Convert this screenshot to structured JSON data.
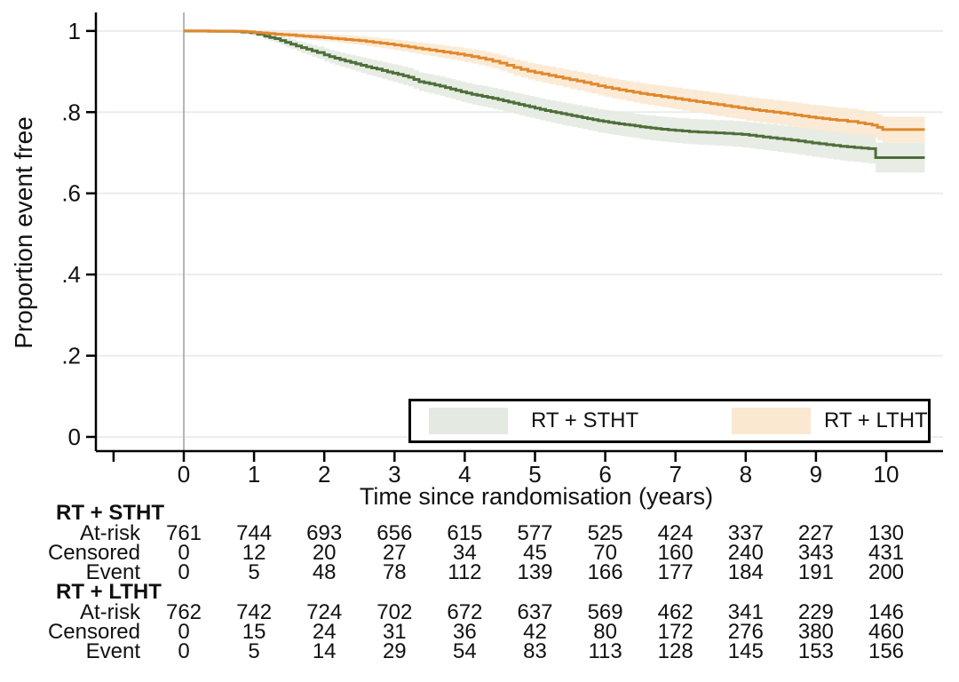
{
  "figure": {
    "background": "#ffffff",
    "grid_color": "#e9edeb",
    "axis_color": "#000000",
    "reference_line_color": "#a3a3a3",
    "text_color": "#111111"
  },
  "legend": {
    "items": [
      {
        "label": "RT + STHT",
        "swatch_color": "#e4e9e1"
      },
      {
        "label": "RT + LTHT",
        "swatch_color": "#fae8d0"
      }
    ]
  },
  "chart_data": {
    "type": "line",
    "subtype": "kaplan-meier-step-with-confidence-bands",
    "title": "",
    "xlabel": "Time since randomisation (years)",
    "ylabel": "Proportion event free",
    "xlim": [
      -1.25,
      10.8
    ],
    "ylim": [
      0,
      1
    ],
    "grid": "horizontal",
    "legend_position": "inside-bottom-right",
    "reference_line_x": 0,
    "x_ticks": [
      0,
      1,
      2,
      3,
      4,
      5,
      6,
      7,
      8,
      9,
      10
    ],
    "x_minor_ticks": [
      -1
    ],
    "y_ticks": [
      {
        "label": "1",
        "value": 1
      },
      {
        "label": ".8",
        "value": 0.8
      },
      {
        "label": ".6",
        "value": 0.6
      },
      {
        "label": ".4",
        "value": 0.4
      },
      {
        "label": ".2",
        "value": 0.2
      },
      {
        "label": "0",
        "value": 0
      }
    ],
    "series": [
      {
        "name": "RT + STHT",
        "line_color": "#4d6e38",
        "band_color": "#e4e9e1",
        "points": [
          [
            0,
            1
          ],
          [
            0.7,
            0.999
          ],
          [
            0.95,
            0.996
          ],
          [
            1.05,
            0.992
          ],
          [
            1.15,
            0.987
          ],
          [
            1.3,
            0.981
          ],
          [
            1.45,
            0.972
          ],
          [
            1.6,
            0.963
          ],
          [
            1.75,
            0.955
          ],
          [
            1.9,
            0.947
          ],
          [
            2.0,
            0.941
          ],
          [
            2.15,
            0.933
          ],
          [
            2.3,
            0.926
          ],
          [
            2.45,
            0.919
          ],
          [
            2.6,
            0.912
          ],
          [
            2.75,
            0.906
          ],
          [
            2.9,
            0.899
          ],
          [
            3.05,
            0.893
          ],
          [
            3.2,
            0.886
          ],
          [
            3.35,
            0.875
          ],
          [
            3.5,
            0.87
          ],
          [
            3.65,
            0.864
          ],
          [
            3.8,
            0.857
          ],
          [
            3.95,
            0.85
          ],
          [
            4.1,
            0.844
          ],
          [
            4.25,
            0.839
          ],
          [
            4.4,
            0.834
          ],
          [
            4.55,
            0.828
          ],
          [
            4.7,
            0.822
          ],
          [
            4.85,
            0.816
          ],
          [
            5.0,
            0.81
          ],
          [
            5.15,
            0.804
          ],
          [
            5.3,
            0.799
          ],
          [
            5.45,
            0.794
          ],
          [
            5.6,
            0.789
          ],
          [
            5.75,
            0.784
          ],
          [
            5.9,
            0.779
          ],
          [
            6.05,
            0.775
          ],
          [
            6.2,
            0.771
          ],
          [
            6.35,
            0.768
          ],
          [
            6.5,
            0.764
          ],
          [
            6.65,
            0.761
          ],
          [
            6.8,
            0.758
          ],
          [
            7.0,
            0.755
          ],
          [
            7.2,
            0.752
          ],
          [
            7.45,
            0.75
          ],
          [
            7.7,
            0.748
          ],
          [
            7.95,
            0.745
          ],
          [
            8.15,
            0.741
          ],
          [
            8.35,
            0.737
          ],
          [
            8.55,
            0.733
          ],
          [
            8.75,
            0.729
          ],
          [
            8.95,
            0.724
          ],
          [
            9.15,
            0.72
          ],
          [
            9.35,
            0.716
          ],
          [
            9.55,
            0.713
          ],
          [
            9.75,
            0.71
          ],
          [
            9.85,
            0.688
          ],
          [
            10.55,
            0.688
          ]
        ],
        "ci_halfwidth": [
          [
            0,
            0.002
          ],
          [
            1,
            0.007
          ],
          [
            2,
            0.016
          ],
          [
            3,
            0.022
          ],
          [
            4,
            0.025
          ],
          [
            5,
            0.027
          ],
          [
            6,
            0.029
          ],
          [
            7,
            0.031
          ],
          [
            8,
            0.032
          ],
          [
            9,
            0.034
          ],
          [
            9.9,
            0.037
          ],
          [
            10.55,
            0.037
          ]
        ]
      },
      {
        "name": "RT + LTHT",
        "line_color": "#e0882d",
        "band_color": "#fae8d0",
        "points": [
          [
            0,
            1
          ],
          [
            0.9,
            0.998
          ],
          [
            1.1,
            0.995
          ],
          [
            1.3,
            0.992
          ],
          [
            1.5,
            0.99
          ],
          [
            1.7,
            0.987
          ],
          [
            1.9,
            0.985
          ],
          [
            2.1,
            0.982
          ],
          [
            2.3,
            0.979
          ],
          [
            2.5,
            0.976
          ],
          [
            2.7,
            0.972
          ],
          [
            2.9,
            0.968
          ],
          [
            3.1,
            0.963
          ],
          [
            3.3,
            0.958
          ],
          [
            3.5,
            0.953
          ],
          [
            3.7,
            0.948
          ],
          [
            3.9,
            0.943
          ],
          [
            4.1,
            0.937
          ],
          [
            4.3,
            0.93
          ],
          [
            4.5,
            0.921
          ],
          [
            4.7,
            0.91
          ],
          [
            4.9,
            0.901
          ],
          [
            5.1,
            0.894
          ],
          [
            5.3,
            0.887
          ],
          [
            5.5,
            0.88
          ],
          [
            5.7,
            0.873
          ],
          [
            5.9,
            0.865
          ],
          [
            6.1,
            0.858
          ],
          [
            6.3,
            0.852
          ],
          [
            6.5,
            0.846
          ],
          [
            6.7,
            0.841
          ],
          [
            6.9,
            0.836
          ],
          [
            7.1,
            0.831
          ],
          [
            7.3,
            0.826
          ],
          [
            7.5,
            0.821
          ],
          [
            7.7,
            0.816
          ],
          [
            7.9,
            0.811
          ],
          [
            8.1,
            0.806
          ],
          [
            8.3,
            0.802
          ],
          [
            8.5,
            0.798
          ],
          [
            8.7,
            0.793
          ],
          [
            8.9,
            0.788
          ],
          [
            9.1,
            0.784
          ],
          [
            9.3,
            0.78
          ],
          [
            9.6,
            0.774
          ],
          [
            9.8,
            0.768
          ],
          [
            9.95,
            0.757
          ],
          [
            10.55,
            0.757
          ]
        ],
        "ci_halfwidth": [
          [
            0,
            0.002
          ],
          [
            1,
            0.005
          ],
          [
            2,
            0.009
          ],
          [
            3,
            0.013
          ],
          [
            4,
            0.017
          ],
          [
            5,
            0.021
          ],
          [
            6,
            0.024
          ],
          [
            7,
            0.027
          ],
          [
            8,
            0.029
          ],
          [
            9,
            0.031
          ],
          [
            10,
            0.032
          ],
          [
            10.55,
            0.032
          ]
        ]
      }
    ]
  },
  "risk_table": {
    "time_points": [
      0,
      1,
      2,
      3,
      4,
      5,
      6,
      7,
      8,
      9,
      10
    ],
    "groups": [
      {
        "name": "RT + STHT",
        "rows": [
          {
            "label": "At-risk",
            "values": [
              761,
              744,
              693,
              656,
              615,
              577,
              525,
              424,
              337,
              227,
              130
            ]
          },
          {
            "label": "Censored",
            "values": [
              0,
              12,
              20,
              27,
              34,
              45,
              70,
              160,
              240,
              343,
              431
            ]
          },
          {
            "label": "Event",
            "values": [
              0,
              5,
              48,
              78,
              112,
              139,
              166,
              177,
              184,
              191,
              200
            ]
          }
        ]
      },
      {
        "name": "RT + LTHT",
        "rows": [
          {
            "label": "At-risk",
            "values": [
              762,
              742,
              724,
              702,
              672,
              637,
              569,
              462,
              341,
              229,
              146
            ]
          },
          {
            "label": "Censored",
            "values": [
              0,
              15,
              24,
              31,
              36,
              42,
              80,
              172,
              276,
              380,
              460
            ]
          },
          {
            "label": "Event",
            "values": [
              0,
              5,
              14,
              29,
              54,
              83,
              113,
              128,
              145,
              153,
              156
            ]
          }
        ]
      }
    ]
  }
}
